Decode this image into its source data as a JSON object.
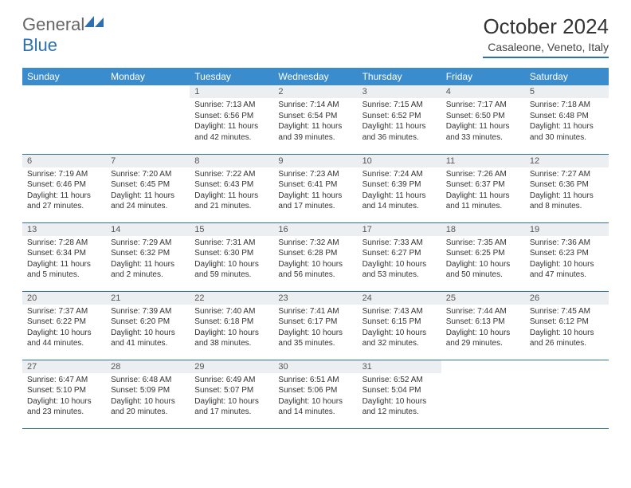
{
  "logo": {
    "text_gray": "General",
    "text_blue": "Blue"
  },
  "title": "October 2024",
  "subtitle": "Casaleone, Veneto, Italy",
  "colors": {
    "header_bg": "#3b8ccc",
    "header_text": "#ffffff",
    "border": "#2e6fb2",
    "daynum_bg": "#eceff1",
    "body_text": "#333333",
    "logo_gray": "#666666",
    "logo_blue": "#2e6fb2"
  },
  "day_headers": [
    "Sunday",
    "Monday",
    "Tuesday",
    "Wednesday",
    "Thursday",
    "Friday",
    "Saturday"
  ],
  "weeks": [
    [
      null,
      null,
      {
        "n": "1",
        "sr": "7:13 AM",
        "ss": "6:56 PM",
        "dl": "11 hours and 42 minutes."
      },
      {
        "n": "2",
        "sr": "7:14 AM",
        "ss": "6:54 PM",
        "dl": "11 hours and 39 minutes."
      },
      {
        "n": "3",
        "sr": "7:15 AM",
        "ss": "6:52 PM",
        "dl": "11 hours and 36 minutes."
      },
      {
        "n": "4",
        "sr": "7:17 AM",
        "ss": "6:50 PM",
        "dl": "11 hours and 33 minutes."
      },
      {
        "n": "5",
        "sr": "7:18 AM",
        "ss": "6:48 PM",
        "dl": "11 hours and 30 minutes."
      }
    ],
    [
      {
        "n": "6",
        "sr": "7:19 AM",
        "ss": "6:46 PM",
        "dl": "11 hours and 27 minutes."
      },
      {
        "n": "7",
        "sr": "7:20 AM",
        "ss": "6:45 PM",
        "dl": "11 hours and 24 minutes."
      },
      {
        "n": "8",
        "sr": "7:22 AM",
        "ss": "6:43 PM",
        "dl": "11 hours and 21 minutes."
      },
      {
        "n": "9",
        "sr": "7:23 AM",
        "ss": "6:41 PM",
        "dl": "11 hours and 17 minutes."
      },
      {
        "n": "10",
        "sr": "7:24 AM",
        "ss": "6:39 PM",
        "dl": "11 hours and 14 minutes."
      },
      {
        "n": "11",
        "sr": "7:26 AM",
        "ss": "6:37 PM",
        "dl": "11 hours and 11 minutes."
      },
      {
        "n": "12",
        "sr": "7:27 AM",
        "ss": "6:36 PM",
        "dl": "11 hours and 8 minutes."
      }
    ],
    [
      {
        "n": "13",
        "sr": "7:28 AM",
        "ss": "6:34 PM",
        "dl": "11 hours and 5 minutes."
      },
      {
        "n": "14",
        "sr": "7:29 AM",
        "ss": "6:32 PM",
        "dl": "11 hours and 2 minutes."
      },
      {
        "n": "15",
        "sr": "7:31 AM",
        "ss": "6:30 PM",
        "dl": "10 hours and 59 minutes."
      },
      {
        "n": "16",
        "sr": "7:32 AM",
        "ss": "6:28 PM",
        "dl": "10 hours and 56 minutes."
      },
      {
        "n": "17",
        "sr": "7:33 AM",
        "ss": "6:27 PM",
        "dl": "10 hours and 53 minutes."
      },
      {
        "n": "18",
        "sr": "7:35 AM",
        "ss": "6:25 PM",
        "dl": "10 hours and 50 minutes."
      },
      {
        "n": "19",
        "sr": "7:36 AM",
        "ss": "6:23 PM",
        "dl": "10 hours and 47 minutes."
      }
    ],
    [
      {
        "n": "20",
        "sr": "7:37 AM",
        "ss": "6:22 PM",
        "dl": "10 hours and 44 minutes."
      },
      {
        "n": "21",
        "sr": "7:39 AM",
        "ss": "6:20 PM",
        "dl": "10 hours and 41 minutes."
      },
      {
        "n": "22",
        "sr": "7:40 AM",
        "ss": "6:18 PM",
        "dl": "10 hours and 38 minutes."
      },
      {
        "n": "23",
        "sr": "7:41 AM",
        "ss": "6:17 PM",
        "dl": "10 hours and 35 minutes."
      },
      {
        "n": "24",
        "sr": "7:43 AM",
        "ss": "6:15 PM",
        "dl": "10 hours and 32 minutes."
      },
      {
        "n": "25",
        "sr": "7:44 AM",
        "ss": "6:13 PM",
        "dl": "10 hours and 29 minutes."
      },
      {
        "n": "26",
        "sr": "7:45 AM",
        "ss": "6:12 PM",
        "dl": "10 hours and 26 minutes."
      }
    ],
    [
      {
        "n": "27",
        "sr": "6:47 AM",
        "ss": "5:10 PM",
        "dl": "10 hours and 23 minutes."
      },
      {
        "n": "28",
        "sr": "6:48 AM",
        "ss": "5:09 PM",
        "dl": "10 hours and 20 minutes."
      },
      {
        "n": "29",
        "sr": "6:49 AM",
        "ss": "5:07 PM",
        "dl": "10 hours and 17 minutes."
      },
      {
        "n": "30",
        "sr": "6:51 AM",
        "ss": "5:06 PM",
        "dl": "10 hours and 14 minutes."
      },
      {
        "n": "31",
        "sr": "6:52 AM",
        "ss": "5:04 PM",
        "dl": "10 hours and 12 minutes."
      },
      null,
      null
    ]
  ],
  "labels": {
    "sunrise": "Sunrise: ",
    "sunset": "Sunset: ",
    "daylight": "Daylight: "
  }
}
